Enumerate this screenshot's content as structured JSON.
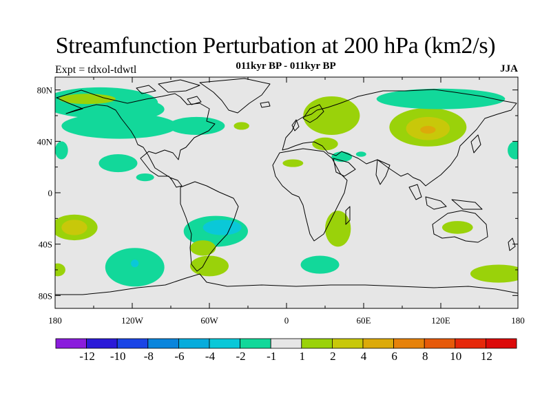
{
  "header": {
    "title": "Streamfunction Perturbation at 200 hPa (km2/s)",
    "subtitle": "011kyr BP - 011kyr BP",
    "experiment": "Expt = tdxol-tdwtl",
    "season": "JJA"
  },
  "map": {
    "projection": "cylindrical equidistant",
    "lon_range": [
      -180,
      180
    ],
    "lat_range": [
      -90,
      90
    ],
    "lon_ticks": [
      {
        "value": -180,
        "label": "180"
      },
      {
        "value": -120,
        "label": "120W"
      },
      {
        "value": -60,
        "label": "60W"
      },
      {
        "value": 0,
        "label": "0"
      },
      {
        "value": 60,
        "label": "60E"
      },
      {
        "value": 120,
        "label": "120E"
      },
      {
        "value": 180,
        "label": "180"
      }
    ],
    "lat_ticks": [
      {
        "value": 80,
        "label": "80N"
      },
      {
        "value": 40,
        "label": "40N"
      },
      {
        "value": 0,
        "label": "0"
      },
      {
        "value": -40,
        "label": "40S"
      },
      {
        "value": -80,
        "label": "80S"
      }
    ],
    "background_color": "#e6e6e6",
    "coastline_color": "#000000",
    "anomaly_regions": [
      {
        "lon": -145,
        "lat": 70,
        "rx": 45,
        "ry": 12,
        "level": "-1"
      },
      {
        "lon": -120,
        "lat": 65,
        "rx": 25,
        "ry": 8,
        "level": "-1"
      },
      {
        "lon": -130,
        "lat": 52,
        "rx": 45,
        "ry": 10,
        "level": "-1"
      },
      {
        "lon": -70,
        "lat": 52,
        "rx": 22,
        "ry": 7,
        "level": "-1"
      },
      {
        "lon": -155,
        "lat": 73,
        "rx": 22,
        "ry": 4,
        "level": "1"
      },
      {
        "lon": -35,
        "lat": 52,
        "rx": 6,
        "ry": 3,
        "level": "1"
      },
      {
        "lon": -175,
        "lat": 33,
        "rx": 5,
        "ry": 7,
        "level": "-1"
      },
      {
        "lon": 35,
        "lat": 60,
        "rx": 22,
        "ry": 15,
        "level": "1"
      },
      {
        "lon": 30,
        "lat": 38,
        "rx": 10,
        "ry": 5,
        "level": "1"
      },
      {
        "lon": 5,
        "lat": 23,
        "rx": 8,
        "ry": 3,
        "level": "1"
      },
      {
        "lon": 110,
        "lat": 51,
        "rx": 30,
        "ry": 15,
        "level": "1"
      },
      {
        "lon": 110,
        "lat": 50,
        "rx": 17,
        "ry": 9,
        "level": "2"
      },
      {
        "lon": 110,
        "lat": 49,
        "rx": 6,
        "ry": 3,
        "level": "4"
      },
      {
        "lon": 120,
        "lat": 73,
        "rx": 50,
        "ry": 8,
        "level": "-1"
      },
      {
        "lon": 43,
        "lat": 28,
        "rx": 8,
        "ry": 4,
        "level": "-1"
      },
      {
        "lon": 58,
        "lat": 30,
        "rx": 4,
        "ry": 2,
        "level": "-1"
      },
      {
        "lon": 178,
        "lat": 33,
        "rx": 6,
        "ry": 7,
        "level": "-1"
      },
      {
        "lon": -131,
        "lat": 23,
        "rx": 15,
        "ry": 7,
        "level": "-1"
      },
      {
        "lon": -110,
        "lat": 12,
        "rx": 7,
        "ry": 3,
        "level": "-1"
      },
      {
        "lon": -55,
        "lat": -30,
        "rx": 25,
        "ry": 12,
        "level": "-1"
      },
      {
        "lon": -50,
        "lat": -27,
        "rx": 15,
        "ry": 6,
        "level": "-2"
      },
      {
        "lon": -165,
        "lat": -27,
        "rx": 18,
        "ry": 10,
        "level": "1"
      },
      {
        "lon": -165,
        "lat": -27,
        "rx": 10,
        "ry": 6,
        "level": "2"
      },
      {
        "lon": -118,
        "lat": -58,
        "rx": 23,
        "ry": 15,
        "level": "-1"
      },
      {
        "lon": -118,
        "lat": -55,
        "rx": 3,
        "ry": 3,
        "level": "-2"
      },
      {
        "lon": -65,
        "lat": -43,
        "rx": 10,
        "ry": 6,
        "level": "1"
      },
      {
        "lon": -60,
        "lat": -57,
        "rx": 15,
        "ry": 8,
        "level": "1"
      },
      {
        "lon": 40,
        "lat": -28,
        "rx": 10,
        "ry": 14,
        "level": "1"
      },
      {
        "lon": 26,
        "lat": -56,
        "rx": 15,
        "ry": 7,
        "level": "-1"
      },
      {
        "lon": 133,
        "lat": -27,
        "rx": 12,
        "ry": 5,
        "level": "1"
      },
      {
        "lon": 165,
        "lat": -63,
        "rx": 22,
        "ry": 7,
        "level": "1"
      },
      {
        "lon": -178,
        "lat": -60,
        "rx": 6,
        "ry": 5,
        "level": "1"
      }
    ]
  },
  "colorbar": {
    "levels": [
      "-12",
      "-10",
      "-8",
      "-6",
      "-4",
      "-2",
      "-1",
      "1",
      "2",
      "4",
      "6",
      "8",
      "10",
      "12"
    ],
    "colors": [
      "#8a1cdc",
      "#2b1ad8",
      "#1a45e6",
      "#0a85dc",
      "#06acdc",
      "#0ac8d8",
      "#12d89a",
      "#e6e6e6",
      "#9ad20a",
      "#c8c80a",
      "#dcaa0a",
      "#e6820a",
      "#e65a0a",
      "#e6280a",
      "#dc0a0a"
    ],
    "level_colors": {
      "-1": "#12d89a",
      "-2": "#0ac8d8",
      "1": "#9ad20a",
      "2": "#c8c80a",
      "4": "#dcaa0a"
    }
  }
}
